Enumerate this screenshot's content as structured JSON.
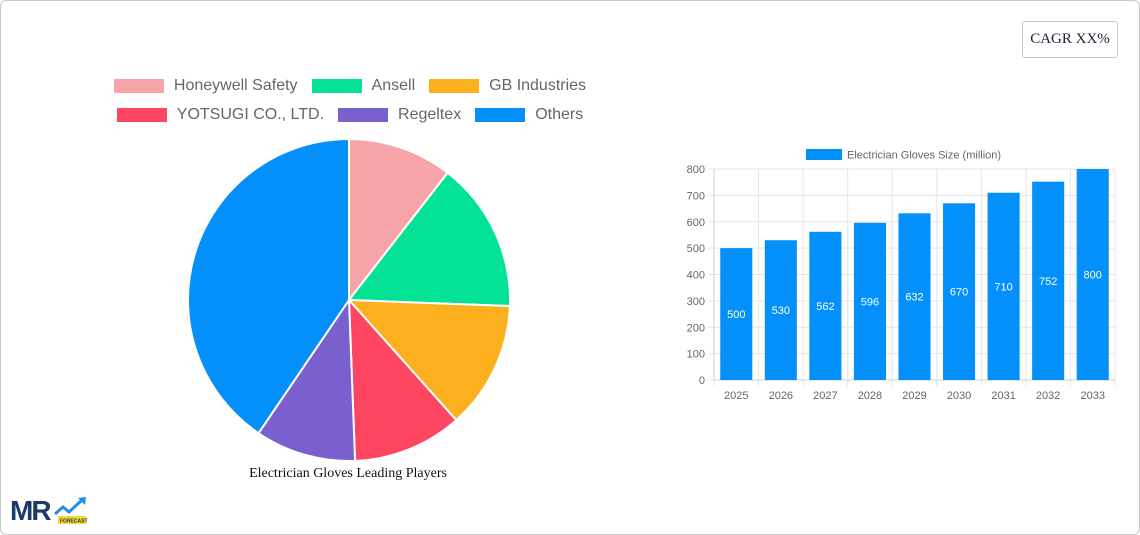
{
  "badge": {
    "cagr_label": "CAGR XX%"
  },
  "pie": {
    "caption": "Electrician Gloves Leading Players",
    "legend": [
      {
        "label": "Honeywell Safety",
        "color": "#f7a4a8"
      },
      {
        "label": "Ansell",
        "color": "#04e296"
      },
      {
        "label": "GB Industries",
        "color": "#fdb01d"
      },
      {
        "label": "YOTSUGI CO., LTD.",
        "color": "#fe4561"
      },
      {
        "label": "Regeltex",
        "color": "#7a5fce"
      },
      {
        "label": "Others",
        "color": "#0390fb"
      }
    ]
  },
  "bar": {
    "legend_label": "Electrician Gloves Size (million)",
    "color": "#0390fb"
  },
  "logo": {
    "text": "MR",
    "sub": "FORECAST"
  },
  "chart_data": [
    {
      "type": "pie",
      "title": "Electrician Gloves Leading Players",
      "categories": [
        "Honeywell Safety",
        "Ansell",
        "GB Industries",
        "YOTSUGI CO., LTD.",
        "Regeltex",
        "Others"
      ],
      "values": [
        10.5,
        15.1,
        12.8,
        11.0,
        10.1,
        40.5
      ],
      "colors": [
        "#f7a4a8",
        "#04e296",
        "#fdb01d",
        "#fe4561",
        "#7a5fce",
        "#0390fb"
      ],
      "legend_position": "top"
    },
    {
      "type": "bar",
      "title": "",
      "categories": [
        "2025",
        "2026",
        "2027",
        "2028",
        "2029",
        "2030",
        "2031",
        "2032",
        "2033"
      ],
      "series": [
        {
          "name": "Electrician Gloves Size (million)",
          "values": [
            500,
            530,
            562,
            596,
            632,
            670,
            710,
            752,
            800
          ]
        }
      ],
      "xlabel": "",
      "ylabel": "",
      "ylim": [
        0,
        800
      ],
      "yticks": [
        0,
        100,
        200,
        300,
        400,
        500,
        600,
        700,
        800
      ],
      "grid": true,
      "legend_position": "top",
      "data_labels": true
    }
  ]
}
